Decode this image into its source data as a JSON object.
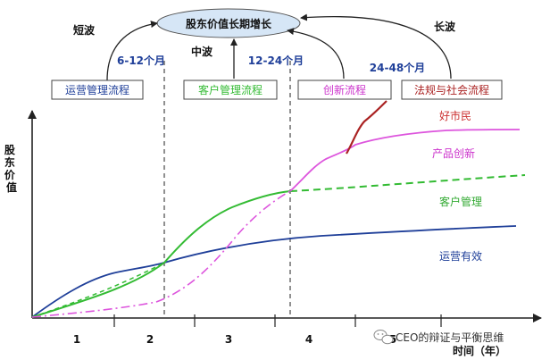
{
  "goal": {
    "label": "股东价值长期增长"
  },
  "waves": {
    "short": "短波",
    "mid": "中波",
    "long": "长波"
  },
  "periods": {
    "p1": "6-12个月",
    "p2": "12-24个月",
    "p3": "24-48个月"
  },
  "processes": [
    {
      "label": "运营管理流程",
      "color": "#1f3f99"
    },
    {
      "label": "客户管理流程",
      "color": "#33bb33"
    },
    {
      "label": "创新流程",
      "color": "#cc33cc"
    },
    {
      "label": "法规与社会流程",
      "color": "#aa2222"
    }
  ],
  "y_axis_label": "股东价值",
  "x_axis_label": "时间（年）",
  "x_ticks": [
    "1",
    "2",
    "3",
    "4",
    "5"
  ],
  "curves": [
    {
      "label": "好市民",
      "color": "#aa2222"
    },
    {
      "label": "产品创新",
      "color": "#dd55dd"
    },
    {
      "label": "客户管理",
      "color": "#33bb33"
    },
    {
      "label": "运营有效",
      "color": "#1f3f99"
    }
  ],
  "watermark": {
    "icon": "wechat-icon",
    "text": "CEO的辩证与平衡思维"
  }
}
